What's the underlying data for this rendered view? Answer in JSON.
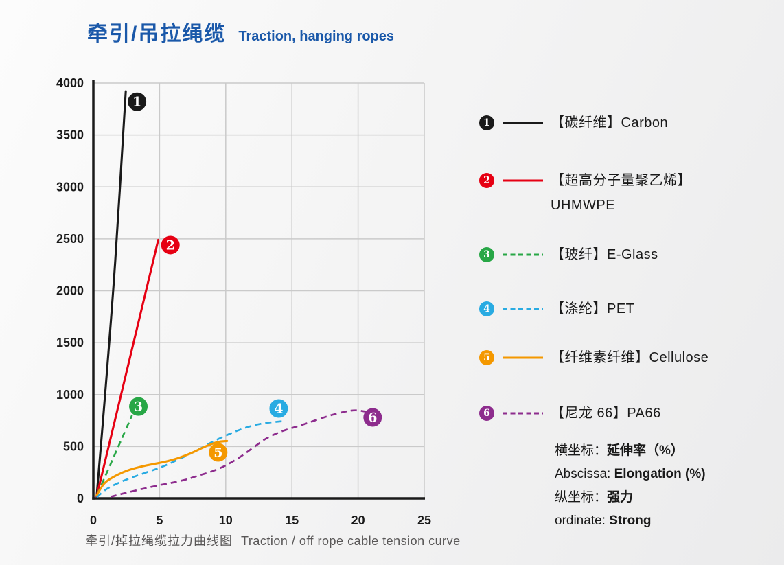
{
  "header": {
    "title_zh": "牵引/吊拉绳缆",
    "title_en": "Traction, hanging ropes"
  },
  "caption": {
    "zh": "牵引/掉拉绳缆拉力曲线图",
    "en": "Traction / off rope cable tension curve"
  },
  "notes": [
    {
      "label": "横坐标：",
      "value": "延伸率（%）"
    },
    {
      "label": "Abscissa: ",
      "value": "Elongation (%)"
    },
    {
      "label": "纵坐标：",
      "value": "强力"
    },
    {
      "label": "ordinate: ",
      "value": "Strong"
    }
  ],
  "colors": {
    "title_blue": "#1a58a9",
    "axis": "#1a1a1a",
    "grid": "#cacaca",
    "tick_text": "#1a1a1a",
    "caption_gray": "#595757"
  },
  "chart_data": {
    "type": "line",
    "title": "牵引/掉拉绳缆拉力曲线图 Traction / off rope cable tension curve",
    "xlabel": "延伸率 Elongation (%)",
    "ylabel": "强力 Strong",
    "xlim": [
      0,
      25
    ],
    "ylim": [
      0,
      4000
    ],
    "x_ticks": [
      0,
      5,
      10,
      15,
      20,
      25
    ],
    "y_ticks": [
      0,
      500,
      1000,
      1500,
      2000,
      2500,
      3000,
      3500,
      4000
    ],
    "grid": true,
    "legend_position": "right",
    "series": [
      {
        "num": "1",
        "label_zh": "【碳纤维】",
        "label_en": "Carbon",
        "label_en2": "",
        "color": "#1a1a1a",
        "dash": false,
        "points": [
          [
            0.25,
            20
          ],
          [
            0.95,
            1100
          ],
          [
            1.65,
            2280
          ],
          [
            2.45,
            3920
          ]
        ],
        "badge": [
          3.3,
          3820
        ]
      },
      {
        "num": "2",
        "label_zh": "【超高分子量聚乙烯】",
        "label_en": "",
        "label_en2": "UHMWPE",
        "color": "#e60013",
        "dash": false,
        "points": [
          [
            0.25,
            20
          ],
          [
            4.9,
            2490
          ]
        ],
        "badge": [
          5.82,
          2440
        ]
      },
      {
        "num": "3",
        "label_zh": "【玻纤】",
        "label_en": "E-Glass",
        "label_en2": "",
        "color": "#28a746",
        "dash": true,
        "points": [
          [
            0.3,
            40
          ],
          [
            2.92,
            800
          ]
        ],
        "badge": [
          3.4,
          885
        ]
      },
      {
        "num": "4",
        "label_zh": "【涤纶】",
        "label_en": "PET",
        "label_en2": "",
        "color": "#29abe2",
        "dash": true,
        "points": [
          [
            0.25,
            10
          ],
          [
            1,
            90
          ],
          [
            2,
            155
          ],
          [
            3,
            205
          ],
          [
            4,
            250
          ],
          [
            5,
            295
          ],
          [
            6,
            350
          ],
          [
            7,
            410
          ],
          [
            8,
            475
          ],
          [
            9,
            545
          ],
          [
            10,
            605
          ],
          [
            11,
            658
          ],
          [
            12,
            700
          ],
          [
            13,
            726
          ],
          [
            14.4,
            745
          ]
        ],
        "badge": [
          14.0,
          866
        ]
      },
      {
        "num": "5",
        "label_zh": "【纤维素纤维】",
        "label_en": "Cellulose",
        "label_en2": "",
        "color": "#f49800",
        "dash": false,
        "points": [
          [
            0.25,
            30
          ],
          [
            0.8,
            140
          ],
          [
            1.5,
            205
          ],
          [
            2.5,
            265
          ],
          [
            3.5,
            303
          ],
          [
            4.5,
            330
          ],
          [
            5.5,
            355
          ],
          [
            6.5,
            392
          ],
          [
            7.5,
            442
          ],
          [
            8.5,
            502
          ],
          [
            9.4,
            543
          ],
          [
            10.1,
            553
          ]
        ],
        "badge": [
          9.43,
          443
        ]
      },
      {
        "num": "6",
        "label_zh": "【尼龙 66】",
        "label_en": "PA66",
        "label_en2": "",
        "color": "#8d2c8d",
        "dash": true,
        "points": [
          [
            1.3,
            15
          ],
          [
            2.5,
            55
          ],
          [
            4,
            100
          ],
          [
            5,
            128
          ],
          [
            6,
            152
          ],
          [
            7,
            182
          ],
          [
            8,
            222
          ],
          [
            9,
            262
          ],
          [
            10,
            318
          ],
          [
            11,
            392
          ],
          [
            12,
            482
          ],
          [
            13,
            572
          ],
          [
            14,
            635
          ],
          [
            15,
            678
          ],
          [
            16,
            718
          ],
          [
            17,
            762
          ],
          [
            18,
            803
          ],
          [
            19,
            835
          ],
          [
            19.8,
            848
          ],
          [
            20.6,
            836
          ]
        ],
        "badge": [
          21.1,
          780
        ]
      }
    ]
  }
}
